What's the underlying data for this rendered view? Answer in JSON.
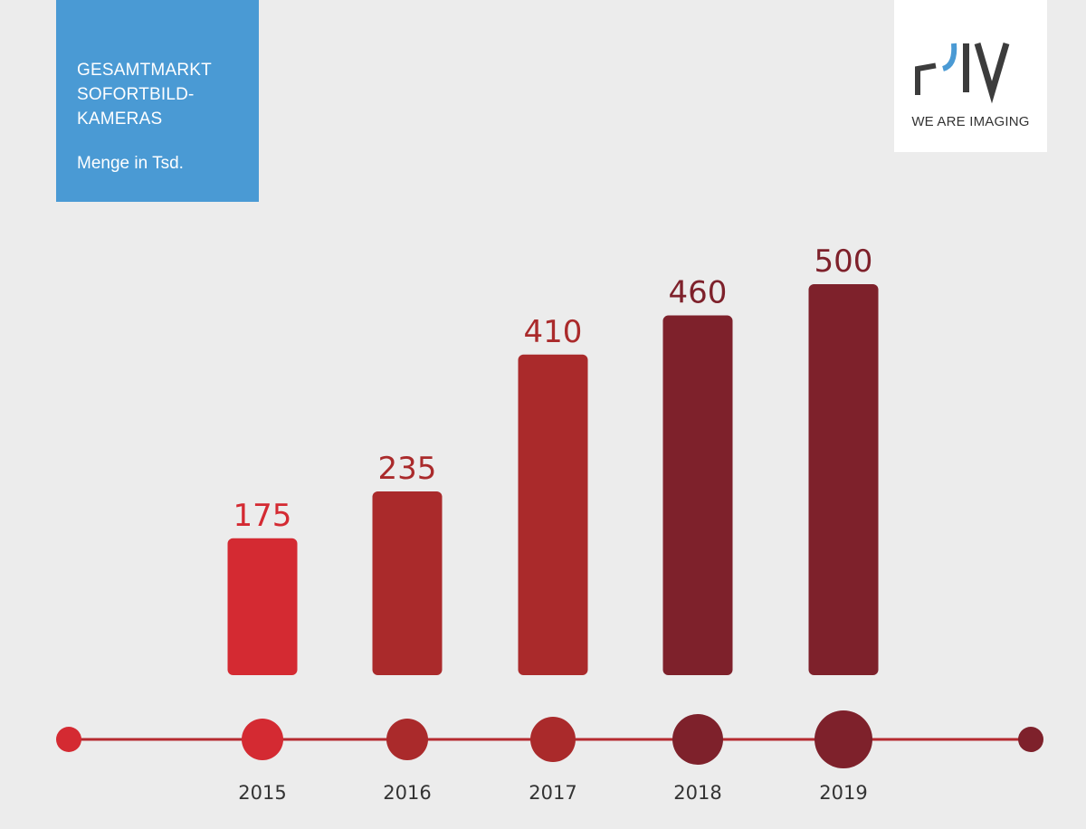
{
  "header": {
    "title": "GESAMTMARKT\nSOFORTBILD-\nKAMERAS",
    "subtitle": "Menge in Tsd."
  },
  "logo": {
    "mark": "PIV",
    "tagline": "WE ARE IMAGING",
    "colors": {
      "mark": "#3c3c3c",
      "accent": "#4a9ad4"
    }
  },
  "chart_data": {
    "type": "bar",
    "title": "GESAMTMARKT SOFORTBILD-KAMERAS",
    "subtitle": "Menge in Tsd.",
    "categories": [
      "2015",
      "2016",
      "2017",
      "2018",
      "2019"
    ],
    "values": [
      175,
      235,
      410,
      460,
      500
    ],
    "value_labels": [
      "175",
      "235",
      "410",
      "460",
      "500"
    ],
    "ylim": [
      0,
      500
    ],
    "grid": false,
    "legend": "none",
    "bar_colors": [
      "#d42a32",
      "#aa2a2b",
      "#aa2a2b",
      "#7e212b",
      "#7e212b"
    ],
    "timeline": {
      "line_color": "#b52a30",
      "start_dot_color": "#d42a32",
      "end_dot_color": "#7e212b",
      "marker_colors": [
        "#d42a32",
        "#aa2a2b",
        "#aa2a2b",
        "#7e212b",
        "#7e212b"
      ]
    }
  }
}
